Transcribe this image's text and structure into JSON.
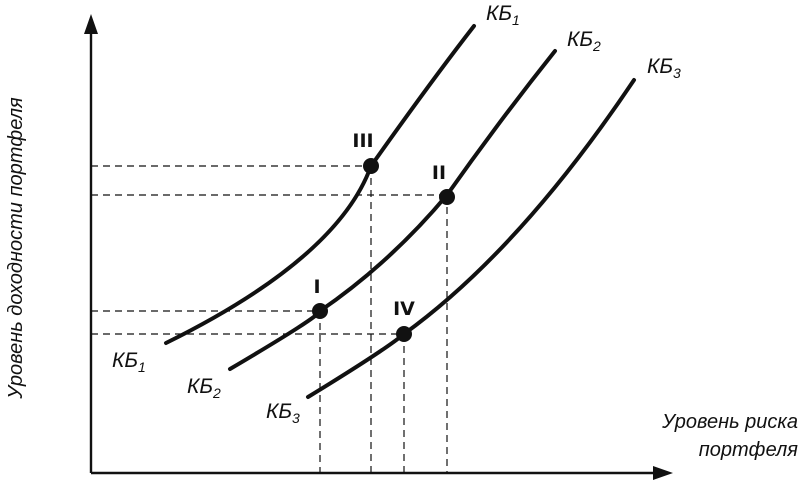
{
  "axes": {
    "y_title": "Уровень доходности портфеля",
    "x_title_line1": "Уровень риска",
    "x_title_line2": "портфеля"
  },
  "curves": [
    {
      "id": "kb1",
      "base": "КБ",
      "sub": "1"
    },
    {
      "id": "kb2",
      "base": "КБ",
      "sub": "2"
    },
    {
      "id": "kb3",
      "base": "КБ",
      "sub": "3"
    }
  ],
  "points": [
    {
      "id": "p1",
      "label": "I"
    },
    {
      "id": "p2",
      "label": "II"
    },
    {
      "id": "p3",
      "label": "III"
    },
    {
      "id": "p4",
      "label": "IV"
    }
  ]
}
